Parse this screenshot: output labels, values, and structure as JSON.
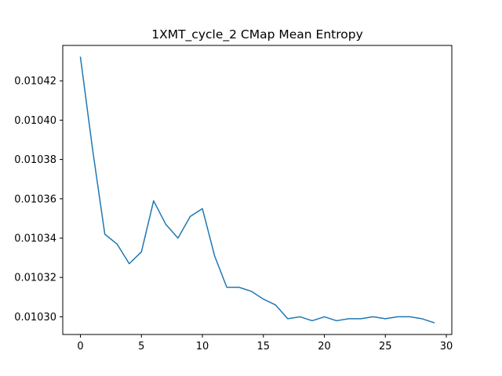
{
  "chart_data": {
    "type": "line",
    "title": "1XMT_cycle_2 CMap Mean Entropy",
    "xlabel": "",
    "ylabel": "",
    "xlim": [
      -1.45,
      30.45
    ],
    "ylim": [
      0.010291,
      0.010438
    ],
    "x_ticks": [
      0,
      5,
      10,
      15,
      20,
      25,
      30
    ],
    "x_tick_labels": [
      "0",
      "5",
      "10",
      "15",
      "20",
      "25",
      "30"
    ],
    "y_ticks": [
      0.0103,
      0.01032,
      0.01034,
      0.01036,
      0.01038,
      0.0104,
      0.01042
    ],
    "y_tick_labels": [
      "0.01030",
      "0.01032",
      "0.01034",
      "0.01036",
      "0.01038",
      "0.01040",
      "0.01042"
    ],
    "grid": false,
    "series": [
      {
        "color": "#1f77b4",
        "x": [
          0,
          1,
          2,
          3,
          4,
          5,
          6,
          7,
          8,
          9,
          10,
          11,
          12,
          13,
          14,
          15,
          16,
          17,
          18,
          19,
          20,
          21,
          22,
          23,
          24,
          25,
          26,
          27,
          28,
          29
        ],
        "y": [
          0.010432,
          0.010385,
          0.010342,
          0.010337,
          0.010327,
          0.010333,
          0.010359,
          0.010347,
          0.01034,
          0.010351,
          0.010355,
          0.010331,
          0.010315,
          0.010315,
          0.010313,
          0.010309,
          0.010306,
          0.010299,
          0.0103,
          0.010298,
          0.0103,
          0.010298,
          0.010299,
          0.010299,
          0.0103,
          0.010299,
          0.0103,
          0.0103,
          0.010299,
          0.010297
        ]
      }
    ]
  }
}
